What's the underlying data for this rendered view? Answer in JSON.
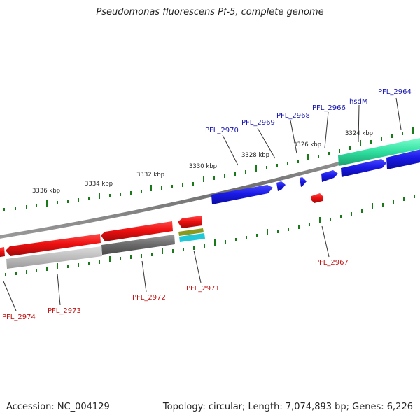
{
  "title": "Pseudomonas fluorescens Pf-5, complete genome",
  "footer": {
    "accession": "Accession: NC_004129",
    "topology": "Topology: circular; Length: 7,074,893 bp; Genes: 6,226"
  },
  "scale_labels": [
    "3324 kbp",
    "3326 kbp",
    "3328 kbp",
    "3330 kbp",
    "3332 kbp",
    "3334 kbp",
    "3336 kbp"
  ],
  "forward_gene_labels": [
    "PFL_2964",
    "hsdM",
    "PFL_2966",
    "PFL_2968",
    "PFL_2969",
    "PFL_2970"
  ],
  "reverse_gene_labels": [
    "PFL_2967",
    "PFL_2971",
    "PFL_2972",
    "PFL_2973",
    "PFL_2974"
  ],
  "colors": {
    "forward_cds": "#1a1ae0",
    "reverse_cds": "#e01010",
    "rna_forward": "#30e0a0",
    "backbone": "#7a7a7a",
    "ticks": "#1a7a1a",
    "forward_label": "#1515b0",
    "reverse_label": "#c01010"
  }
}
